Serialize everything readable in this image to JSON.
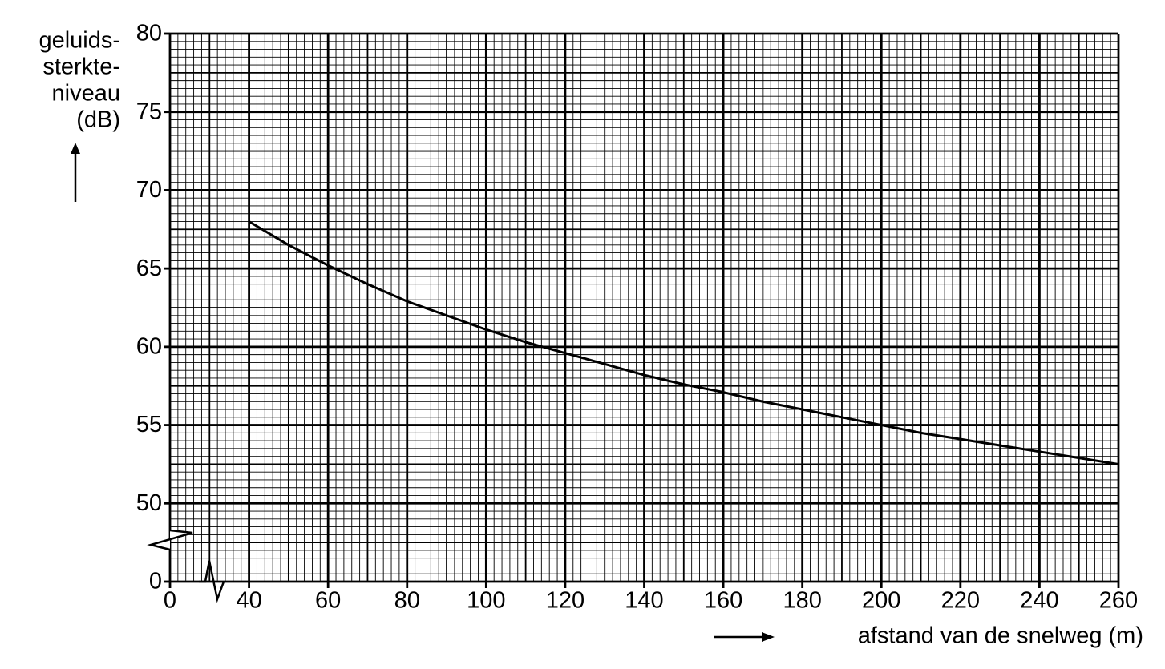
{
  "chart_data": {
    "type": "line",
    "ylabel": [
      "geluids-",
      "sterkte-",
      "niveau",
      "(dB)"
    ],
    "xlabel": "afstand van de snelweg (m)",
    "x": [
      40,
      50,
      60,
      70,
      80,
      90,
      100,
      110,
      120,
      130,
      140,
      150,
      160,
      170,
      180,
      190,
      200,
      210,
      220,
      230,
      240,
      250,
      260
    ],
    "values": [
      68.0,
      66.5,
      65.2,
      64.0,
      62.9,
      62.0,
      61.1,
      60.3,
      59.6,
      58.9,
      58.2,
      57.6,
      57.1,
      56.5,
      56.0,
      55.5,
      55.0,
      54.5,
      54.1,
      53.7,
      53.3,
      52.9,
      52.5
    ],
    "color": "#000000",
    "xlim": [
      0,
      260
    ],
    "xticks": [
      0,
      40,
      60,
      80,
      100,
      120,
      140,
      160,
      180,
      200,
      220,
      240,
      260
    ],
    "xbreak": [
      0,
      40
    ],
    "ylim": [
      0,
      80
    ],
    "yticks": [
      0,
      50,
      55,
      60,
      65,
      70,
      75,
      80
    ],
    "ybreak": [
      0,
      50
    ],
    "grid": true
  }
}
